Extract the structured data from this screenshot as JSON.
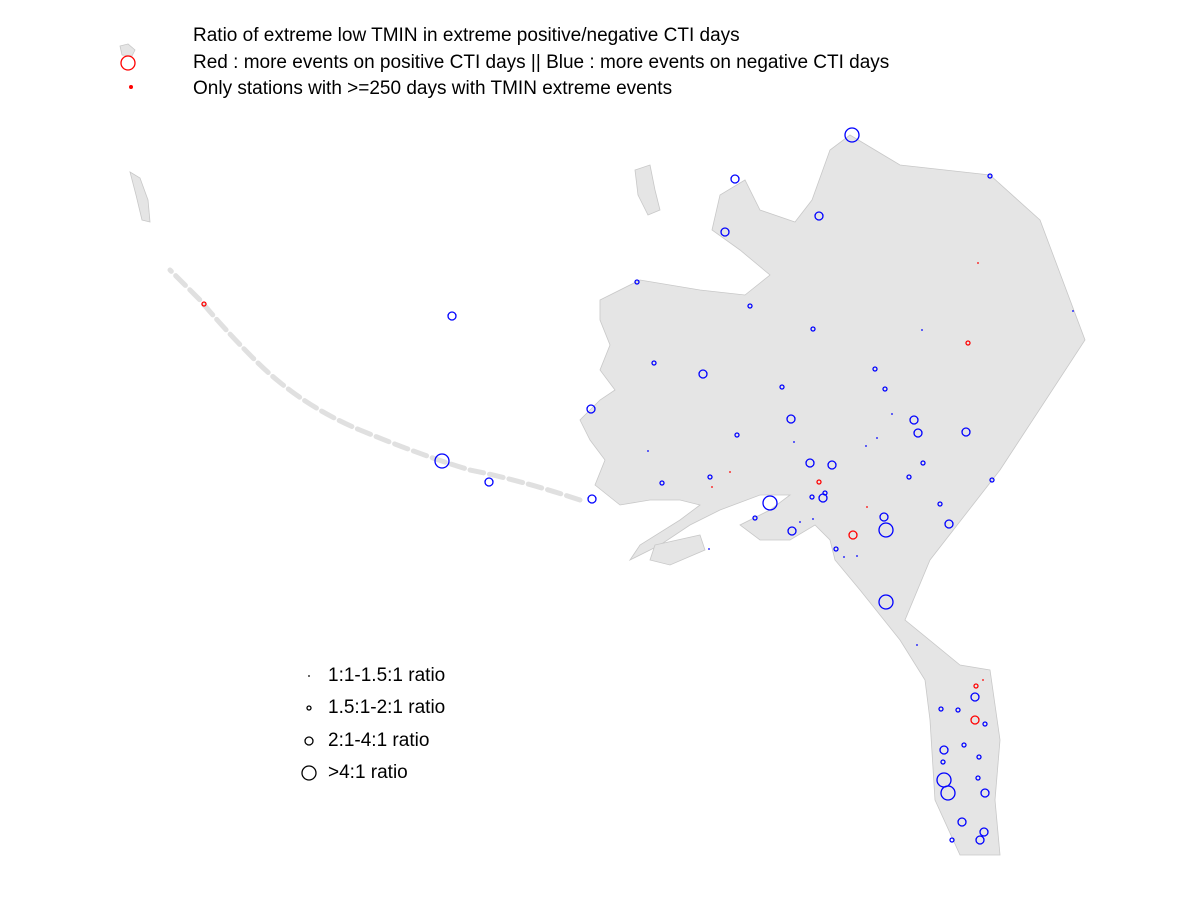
{
  "map": {
    "header": [
      "Ratio of extreme low TMIN in extreme positive/negative CTI days",
      "Red : more events on positive CTI days || Blue : more events on negative CTI days",
      "Only stations with >=250 days with TMIN extreme events"
    ],
    "colors": {
      "positive": "#ff0000",
      "negative": "#0000ff"
    },
    "size_legend": [
      "1:1-1.5:1 ratio",
      "1.5:1-2:1 ratio",
      "2:1-4:1 ratio",
      ">4:1 ratio"
    ],
    "stations": [
      {
        "lon": -150.9,
        "lat": 71.125,
        "size_class": 3,
        "more_on": "negative"
      },
      {
        "lon": -144,
        "lat": 70.1,
        "size_class": 1,
        "more_on": "negative"
      },
      {
        "lon": -156.75,
        "lat": 70.025,
        "size_class": 2,
        "more_on": "negative"
      },
      {
        "lon": -152.55,
        "lat": 69.1,
        "size_class": 2,
        "more_on": "negative"
      },
      {
        "lon": -157.25,
        "lat": 68.7,
        "size_class": 2,
        "more_on": "negative"
      },
      {
        "lon": -144.6,
        "lat": 67.925,
        "size_class": 0,
        "more_on": "positive"
      },
      {
        "lon": -161.65,
        "lat": 67.45,
        "size_class": 1,
        "more_on": "negative"
      },
      {
        "lon": -156,
        "lat": 66.85,
        "size_class": 1,
        "more_on": "negative"
      },
      {
        "lon": -170.9,
        "lat": 66.6,
        "size_class": 2,
        "more_on": "negative"
      },
      {
        "lon": -152.85,
        "lat": 66.275,
        "size_class": 1,
        "more_on": "negative"
      },
      {
        "lon": -147.4,
        "lat": 66.25,
        "size_class": 0,
        "more_on": "negative"
      },
      {
        "lon": -145.1,
        "lat": 65.925,
        "size_class": 1,
        "more_on": "positive"
      },
      {
        "lon": -139.85,
        "lat": 66.725,
        "size_class": 0,
        "more_on": "negative"
      },
      {
        "lon": -160.8,
        "lat": 65.425,
        "size_class": 1,
        "more_on": "negative"
      },
      {
        "lon": -158.35,
        "lat": 65.15,
        "size_class": 2,
        "more_on": "negative"
      },
      {
        "lon": -149.75,
        "lat": 65.275,
        "size_class": 1,
        "more_on": "negative"
      },
      {
        "lon": -154.4,
        "lat": 64.825,
        "size_class": 1,
        "more_on": "negative"
      },
      {
        "lon": -149.25,
        "lat": 64.775,
        "size_class": 1,
        "more_on": "negative"
      },
      {
        "lon": -163.95,
        "lat": 64.275,
        "size_class": 2,
        "more_on": "negative"
      },
      {
        "lon": -148.9,
        "lat": 64.15,
        "size_class": 0,
        "more_on": "negative"
      },
      {
        "lon": -153.95,
        "lat": 64.025,
        "size_class": 2,
        "more_on": "negative"
      },
      {
        "lon": -147.8,
        "lat": 64,
        "size_class": 2,
        "more_on": "negative"
      },
      {
        "lon": -156.65,
        "lat": 63.625,
        "size_class": 1,
        "more_on": "negative"
      },
      {
        "lon": -145.2,
        "lat": 63.7,
        "size_class": 2,
        "more_on": "negative"
      },
      {
        "lon": -147.6,
        "lat": 63.675,
        "size_class": 2,
        "more_on": "negative"
      },
      {
        "lon": -153.8,
        "lat": 63.45,
        "size_class": 0,
        "more_on": "negative"
      },
      {
        "lon": -161.1,
        "lat": 63.225,
        "size_class": 0,
        "more_on": "negative"
      },
      {
        "lon": -149.65,
        "lat": 63.55,
        "size_class": 0,
        "more_on": "negative"
      },
      {
        "lon": -150.2,
        "lat": 63.35,
        "size_class": 0,
        "more_on": "negative"
      },
      {
        "lon": -171.4,
        "lat": 62.975,
        "size_class": 3,
        "more_on": "negative"
      },
      {
        "lon": -153,
        "lat": 62.925,
        "size_class": 2,
        "more_on": "negative"
      },
      {
        "lon": -151.9,
        "lat": 62.875,
        "size_class": 2,
        "more_on": "negative"
      },
      {
        "lon": -147.35,
        "lat": 62.925,
        "size_class": 1,
        "more_on": "negative"
      },
      {
        "lon": -157,
        "lat": 62.7,
        "size_class": 0,
        "more_on": "positive"
      },
      {
        "lon": -158,
        "lat": 62.575,
        "size_class": 1,
        "more_on": "negative"
      },
      {
        "lon": -148.05,
        "lat": 62.575,
        "size_class": 1,
        "more_on": "negative"
      },
      {
        "lon": -169.05,
        "lat": 62.45,
        "size_class": 2,
        "more_on": "negative"
      },
      {
        "lon": -160.4,
        "lat": 62.425,
        "size_class": 1,
        "more_on": "negative"
      },
      {
        "lon": -152.55,
        "lat": 62.45,
        "size_class": 1,
        "more_on": "positive"
      },
      {
        "lon": -143.9,
        "lat": 62.5,
        "size_class": 1,
        "more_on": "negative"
      },
      {
        "lon": -157.9,
        "lat": 62.325,
        "size_class": 0,
        "more_on": "positive"
      },
      {
        "lon": -155,
        "lat": 61.925,
        "size_class": 3,
        "more_on": "negative"
      },
      {
        "lon": -152.9,
        "lat": 62.075,
        "size_class": 1,
        "more_on": "negative"
      },
      {
        "lon": -163.9,
        "lat": 62.025,
        "size_class": 2,
        "more_on": "negative"
      },
      {
        "lon": -152.35,
        "lat": 62.05,
        "size_class": 2,
        "more_on": "negative"
      },
      {
        "lon": -152.25,
        "lat": 62.175,
        "size_class": 1,
        "more_on": "negative"
      },
      {
        "lon": -146.5,
        "lat": 61.9,
        "size_class": 1,
        "more_on": "negative"
      },
      {
        "lon": -150.15,
        "lat": 61.825,
        "size_class": 0,
        "more_on": "positive"
      },
      {
        "lon": -155.75,
        "lat": 61.55,
        "size_class": 1,
        "more_on": "negative"
      },
      {
        "lon": -152.85,
        "lat": 61.525,
        "size_class": 0,
        "more_on": "negative"
      },
      {
        "lon": -153.5,
        "lat": 61.45,
        "size_class": 0,
        "more_on": "negative"
      },
      {
        "lon": -153.9,
        "lat": 61.225,
        "size_class": 2,
        "more_on": "negative"
      },
      {
        "lon": -149.2,
        "lat": 61.25,
        "size_class": 3,
        "more_on": "negative"
      },
      {
        "lon": -149.3,
        "lat": 61.575,
        "size_class": 2,
        "more_on": "negative"
      },
      {
        "lon": -150.85,
        "lat": 61.125,
        "size_class": 2,
        "more_on": "positive"
      },
      {
        "lon": -146.05,
        "lat": 61.4,
        "size_class": 2,
        "more_on": "negative"
      },
      {
        "lon": -151.7,
        "lat": 60.775,
        "size_class": 1,
        "more_on": "negative"
      },
      {
        "lon": -151.3,
        "lat": 60.575,
        "size_class": 0,
        "more_on": "negative"
      },
      {
        "lon": -150.65,
        "lat": 60.6,
        "size_class": 0,
        "more_on": "negative"
      },
      {
        "lon": -158.05,
        "lat": 60.775,
        "size_class": 0,
        "more_on": "negative"
      },
      {
        "lon": -149.2,
        "lat": 59.45,
        "size_class": 3,
        "more_on": "negative"
      },
      {
        "lon": -147.65,
        "lat": 58.375,
        "size_class": 0,
        "more_on": "negative"
      },
      {
        "lon": -144.7,
        "lat": 57.35,
        "size_class": 1,
        "more_on": "positive"
      },
      {
        "lon": -144.35,
        "lat": 57.5,
        "size_class": 0,
        "more_on": "positive"
      },
      {
        "lon": -146.45,
        "lat": 56.775,
        "size_class": 1,
        "more_on": "negative"
      },
      {
        "lon": -144.75,
        "lat": 57.075,
        "size_class": 2,
        "more_on": "negative"
      },
      {
        "lon": -145.6,
        "lat": 56.75,
        "size_class": 1,
        "more_on": "negative"
      },
      {
        "lon": -144.75,
        "lat": 56.5,
        "size_class": 2,
        "more_on": "positive"
      },
      {
        "lon": -144.25,
        "lat": 56.4,
        "size_class": 1,
        "more_on": "negative"
      },
      {
        "lon": -146.3,
        "lat": 55.75,
        "size_class": 2,
        "more_on": "negative"
      },
      {
        "lon": -145.3,
        "lat": 55.875,
        "size_class": 1,
        "more_on": "negative"
      },
      {
        "lon": -146.35,
        "lat": 55.45,
        "size_class": 1,
        "more_on": "negative"
      },
      {
        "lon": -144.55,
        "lat": 55.575,
        "size_class": 1,
        "more_on": "negative"
      },
      {
        "lon": -146.3,
        "lat": 55,
        "size_class": 3,
        "more_on": "negative"
      },
      {
        "lon": -146.1,
        "lat": 54.675,
        "size_class": 3,
        "more_on": "negative"
      },
      {
        "lon": -144.6,
        "lat": 55.05,
        "size_class": 1,
        "more_on": "negative"
      },
      {
        "lon": -144.25,
        "lat": 54.675,
        "size_class": 2,
        "more_on": "negative"
      },
      {
        "lon": -145.4,
        "lat": 53.95,
        "size_class": 2,
        "more_on": "negative"
      },
      {
        "lon": -144.3,
        "lat": 53.7,
        "size_class": 2,
        "more_on": "negative"
      },
      {
        "lon": -144.5,
        "lat": 53.5,
        "size_class": 2,
        "more_on": "negative"
      },
      {
        "lon": -145.9,
        "lat": 53.5,
        "size_class": 1,
        "more_on": "negative"
      },
      {
        "lon": -183.3,
        "lat": 66.9,
        "size_class": 1,
        "more_on": "positive"
      }
    ]
  }
}
